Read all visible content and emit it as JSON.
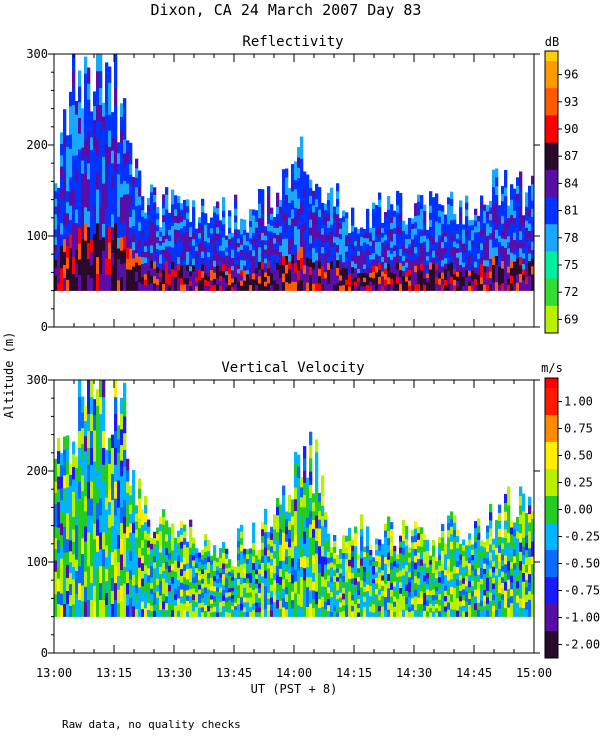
{
  "figure": {
    "title": "Dixon, CA 24 March 2007  Day  83",
    "shared_ylabel": "Altitude (m)",
    "shared_xlabel": "UT  (PST + 8)",
    "footnote": "Raw data, no quality checks"
  },
  "chart_data": [
    {
      "type": "heatmap",
      "title": "Reflectivity",
      "xlabel": "UT  (PST + 8)",
      "ylabel": "Altitude (m)",
      "x_ticks": [
        "13:00",
        "13:15",
        "13:30",
        "13:45",
        "14:00",
        "14:15",
        "14:30",
        "14:45",
        "15:00"
      ],
      "x_range": [
        "13:00",
        "15:00"
      ],
      "y_ticks": [
        0,
        100,
        200,
        300
      ],
      "ylim": [
        0,
        300
      ],
      "data_altitude_range": [
        40,
        300
      ],
      "colorbar": {
        "unit": "dB",
        "labels": [
          "96",
          "93",
          "90",
          "87",
          "84",
          "81",
          "78",
          "75",
          "72",
          "69"
        ],
        "colors": [
          "#ff9900",
          "#ff5a00",
          "#ff0000",
          "#2a0a2a",
          "#5a0ea8",
          "#0033ff",
          "#1aa7ff",
          "#00f0a0",
          "#33dd33",
          "#b8f000"
        ],
        "top_color": "#ffd000"
      },
      "echo_top_profile": [
        {
          "time": "13:00",
          "top_m": 150
        },
        {
          "time": "13:03",
          "top_m": 240
        },
        {
          "time": "13:05",
          "top_m": 300
        },
        {
          "time": "13:10",
          "top_m": 280
        },
        {
          "time": "13:15",
          "top_m": 300
        },
        {
          "time": "13:18",
          "top_m": 220
        },
        {
          "time": "13:22",
          "top_m": 160
        },
        {
          "time": "13:28",
          "top_m": 140
        },
        {
          "time": "13:35",
          "top_m": 130
        },
        {
          "time": "13:50",
          "top_m": 135
        },
        {
          "time": "13:58",
          "top_m": 170
        },
        {
          "time": "14:03",
          "top_m": 210
        },
        {
          "time": "14:08",
          "top_m": 150
        },
        {
          "time": "14:15",
          "top_m": 135
        },
        {
          "time": "14:30",
          "top_m": 140
        },
        {
          "time": "14:45",
          "top_m": 145
        },
        {
          "time": "14:55",
          "top_m": 175
        },
        {
          "time": "15:00",
          "top_m": 150
        }
      ]
    },
    {
      "type": "heatmap",
      "title": "Vertical Velocity",
      "xlabel": "UT  (PST + 8)",
      "ylabel": "Altitude (m)",
      "x_ticks": [
        "13:00",
        "13:15",
        "13:30",
        "13:45",
        "14:00",
        "14:15",
        "14:30",
        "14:45",
        "15:00"
      ],
      "x_range": [
        "13:00",
        "15:00"
      ],
      "y_ticks": [
        0,
        100,
        200,
        300
      ],
      "ylim": [
        0,
        300
      ],
      "data_altitude_range": [
        40,
        300
      ],
      "colorbar": {
        "unit": "m/s",
        "labels": [
          "1.00",
          "0.75",
          "0.50",
          "0.25",
          "0.00",
          "-0.25",
          "-0.50",
          "-0.75",
          "-1.00",
          "-2.00"
        ],
        "colors": [
          "#ff1a00",
          "#ff8a00",
          "#ffee00",
          "#b8f000",
          "#22cc22",
          "#00b4ff",
          "#0a6bff",
          "#1a1aff",
          "#5a0ea8",
          "#2a0a2a"
        ],
        "top_color": "#ff0000"
      },
      "echo_top_profile": [
        {
          "time": "13:00",
          "top_m": 200
        },
        {
          "time": "13:04",
          "top_m": 260
        },
        {
          "time": "13:08",
          "top_m": 300
        },
        {
          "time": "13:13",
          "top_m": 290
        },
        {
          "time": "13:17",
          "top_m": 300
        },
        {
          "time": "13:20",
          "top_m": 200
        },
        {
          "time": "13:25",
          "top_m": 150
        },
        {
          "time": "13:32",
          "top_m": 135
        },
        {
          "time": "13:45",
          "top_m": 125
        },
        {
          "time": "13:55",
          "top_m": 150
        },
        {
          "time": "14:00",
          "top_m": 200
        },
        {
          "time": "14:05",
          "top_m": 230
        },
        {
          "time": "14:10",
          "top_m": 140
        },
        {
          "time": "14:20",
          "top_m": 140
        },
        {
          "time": "14:35",
          "top_m": 140
        },
        {
          "time": "14:50",
          "top_m": 150
        },
        {
          "time": "14:55",
          "top_m": 180
        },
        {
          "time": "15:00",
          "top_m": 150
        }
      ]
    }
  ]
}
